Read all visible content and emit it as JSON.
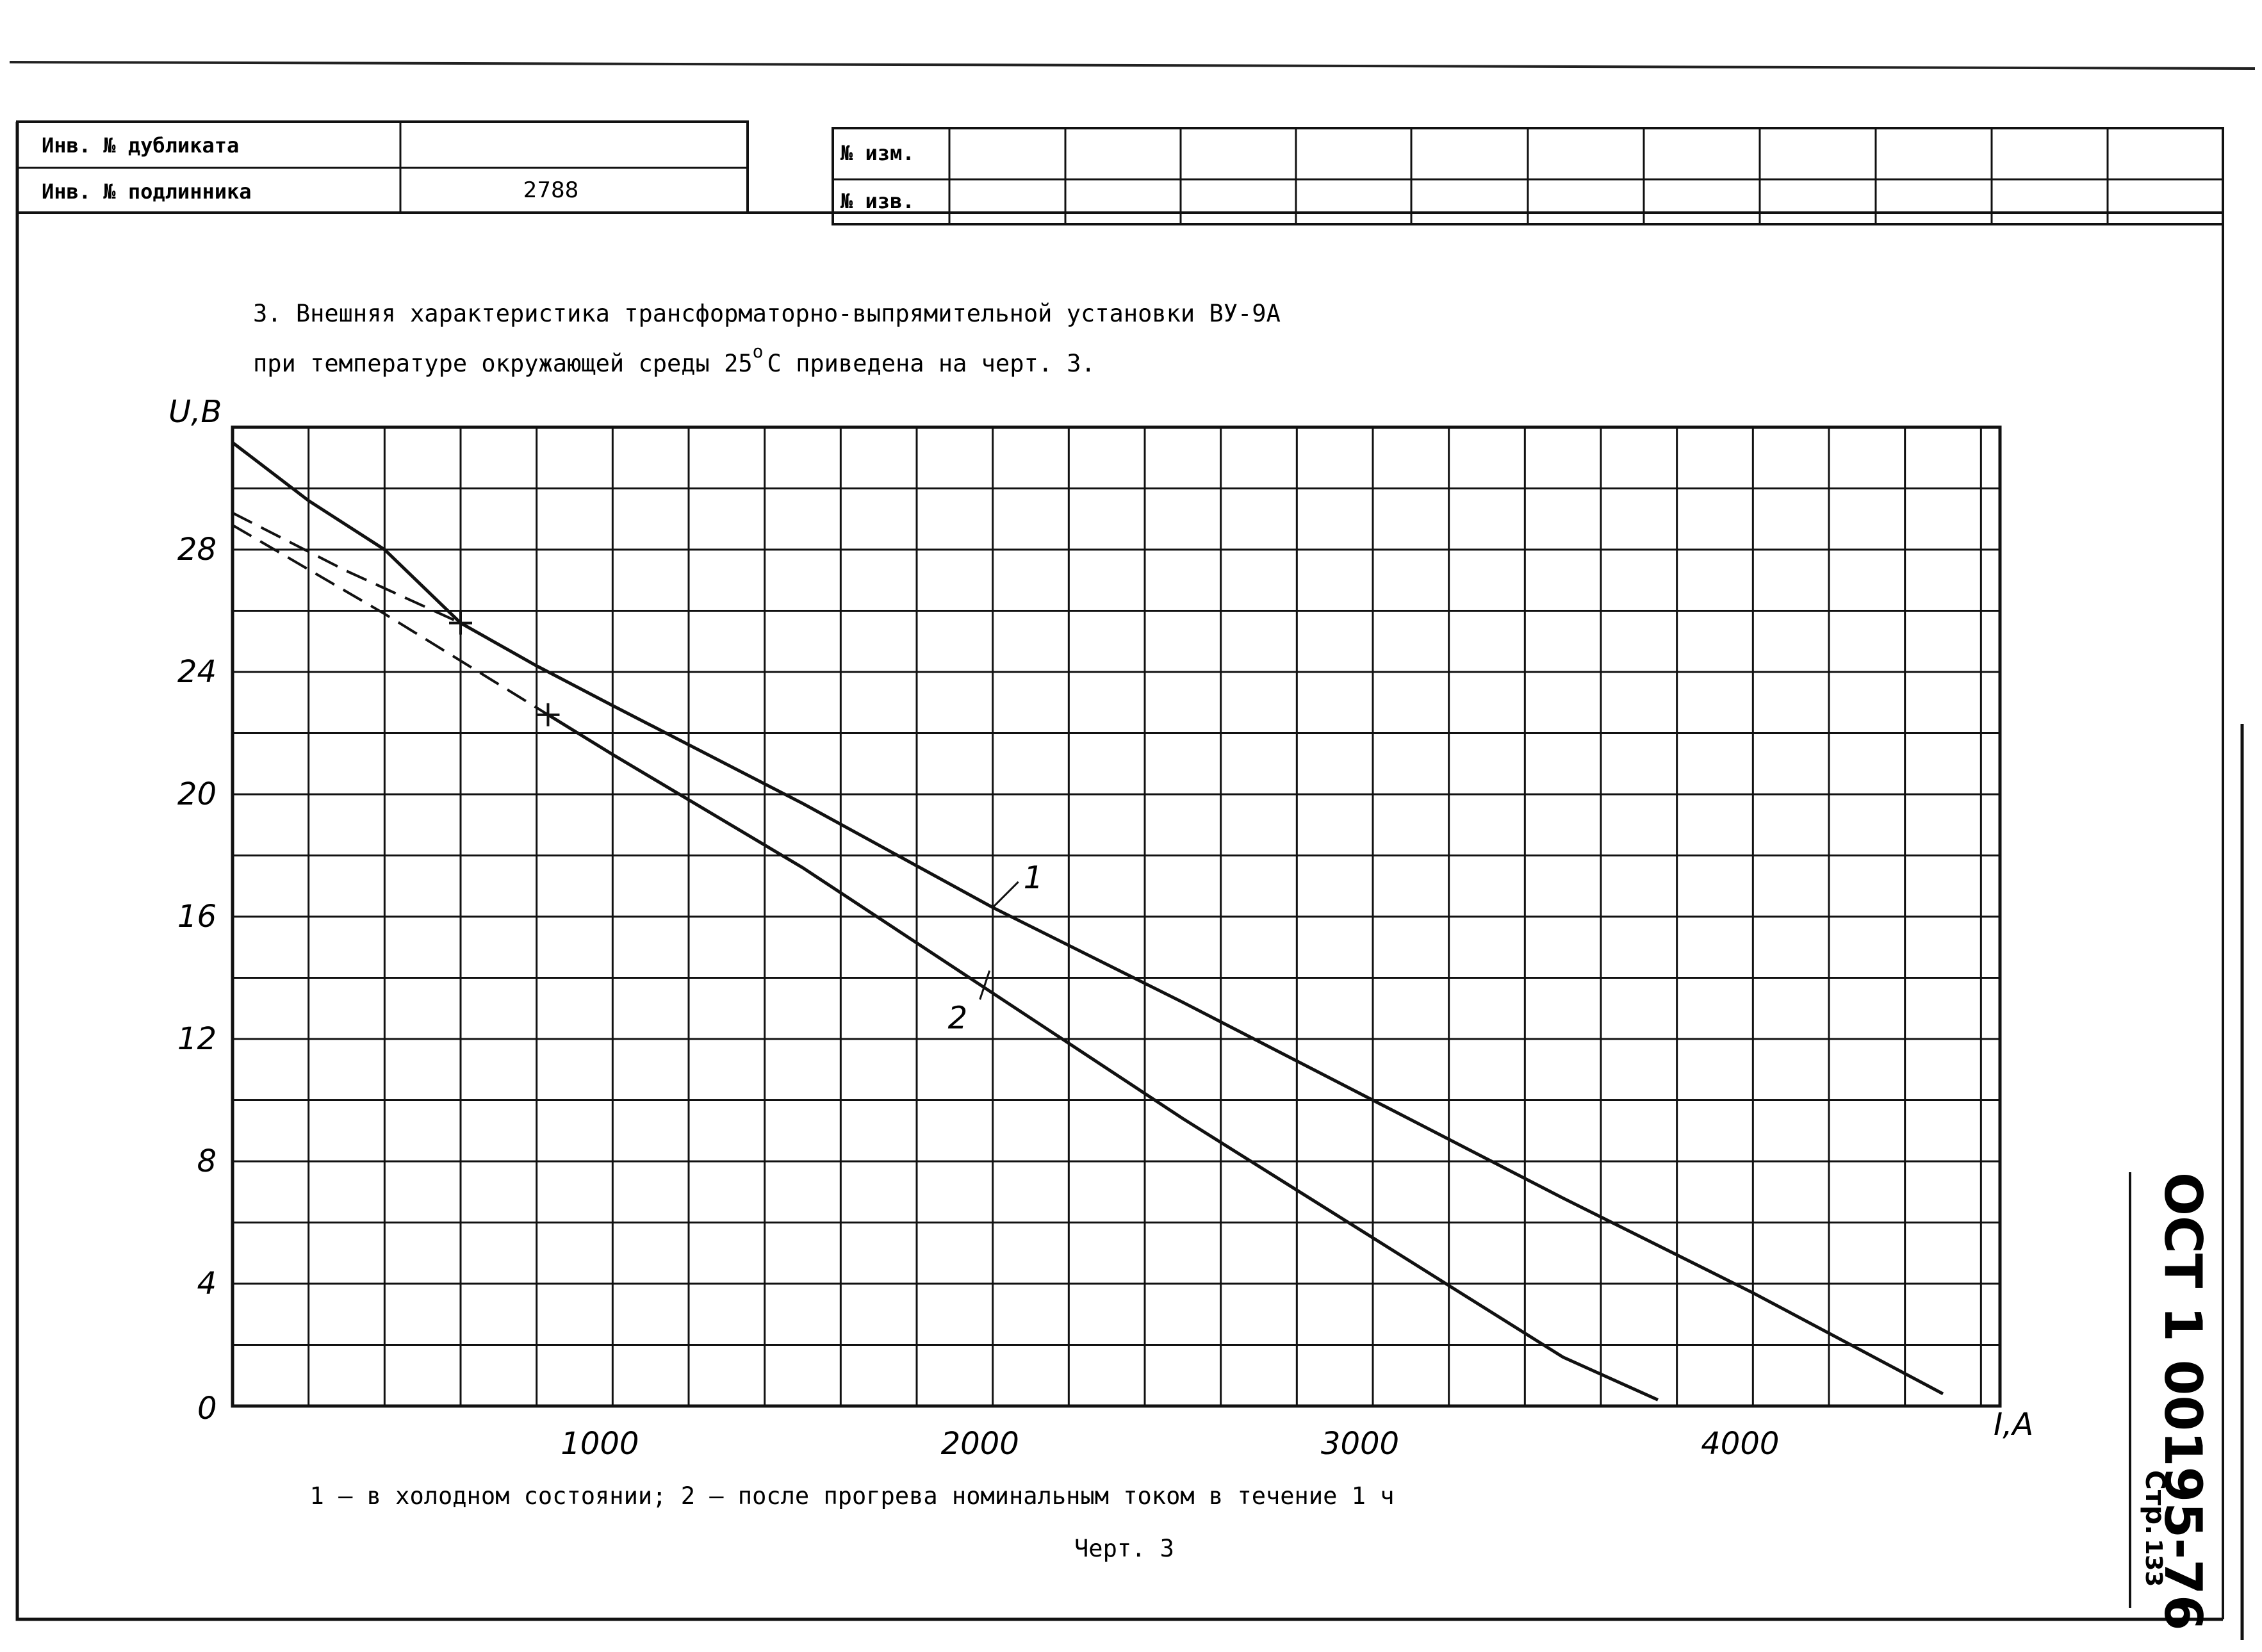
{
  "header": {
    "inv_duplicate_label": "Инв. № дубликата",
    "inv_duplicate_value": "",
    "inv_original_label": "Инв. № подлинника",
    "inv_original_value": "2788",
    "change_no_label": "№ изм.",
    "notice_no_label": "№ изв."
  },
  "text": {
    "paragraph_line1": "3. Внешняя характеристика трансформаторно-выпрямительной установки ВУ-9А",
    "paragraph_line2_pre": "при температуре окружающей среды 25",
    "paragraph_line2_sup": "о",
    "paragraph_line2_post": "С приведена на черт. 3.",
    "legend_note": "1 – в холодном состоянии; 2 – после прогрева номинальным током в течение 1 ч",
    "figure_caption": "Черт. 3"
  },
  "stamp": {
    "code": "ОСТ 1 00195-76",
    "page_prefix": "Стр.",
    "page_number": "133"
  },
  "chart_data": {
    "type": "line",
    "ylabel": "U,B",
    "xlabel": "I,A",
    "origin_label": "0",
    "xlim": [
      0,
      4650
    ],
    "ylim": [
      0,
      32
    ],
    "x_tick_labels": [
      "1000",
      "2000",
      "3000",
      "4000"
    ],
    "x_tick_values": [
      1000,
      2000,
      3000,
      4000
    ],
    "y_tick_labels": [
      "4",
      "8",
      "12",
      "16",
      "20",
      "24",
      "28"
    ],
    "y_tick_values": [
      4,
      8,
      12,
      16,
      20,
      24,
      28
    ],
    "grid": true,
    "series": [
      {
        "name": "1",
        "style": "solid",
        "x": [
          0,
          200,
          400,
          600,
          800,
          1000,
          1500,
          2000,
          2500,
          3000,
          3500,
          4000,
          4500
        ],
        "y": [
          31.5,
          29.6,
          28.0,
          25.6,
          24.2,
          22.9,
          19.7,
          16.3,
          13.2,
          10.0,
          6.8,
          3.7,
          0.4
        ]
      },
      {
        "name": "",
        "style": "dashed",
        "x": [
          0,
          300,
          600
        ],
        "y": [
          29.2,
          27.3,
          25.6
        ]
      },
      {
        "name": "2",
        "style": "solid",
        "x": [
          830,
          1000,
          1500,
          2000,
          2500,
          3000,
          3500,
          3750
        ],
        "y": [
          22.6,
          21.3,
          17.6,
          13.5,
          9.4,
          5.5,
          1.6,
          0.2
        ]
      },
      {
        "name": "",
        "style": "dashed",
        "x": [
          0,
          400,
          830
        ],
        "y": [
          28.8,
          25.9,
          22.6
        ]
      }
    ],
    "markers": [
      {
        "x": 600,
        "y": 25.6
      },
      {
        "x": 830,
        "y": 22.6
      }
    ],
    "annotations": [
      {
        "text": "1",
        "x": 2000,
        "y": 16.3
      },
      {
        "text": "2",
        "x": 2000,
        "y": 13.5
      }
    ]
  }
}
